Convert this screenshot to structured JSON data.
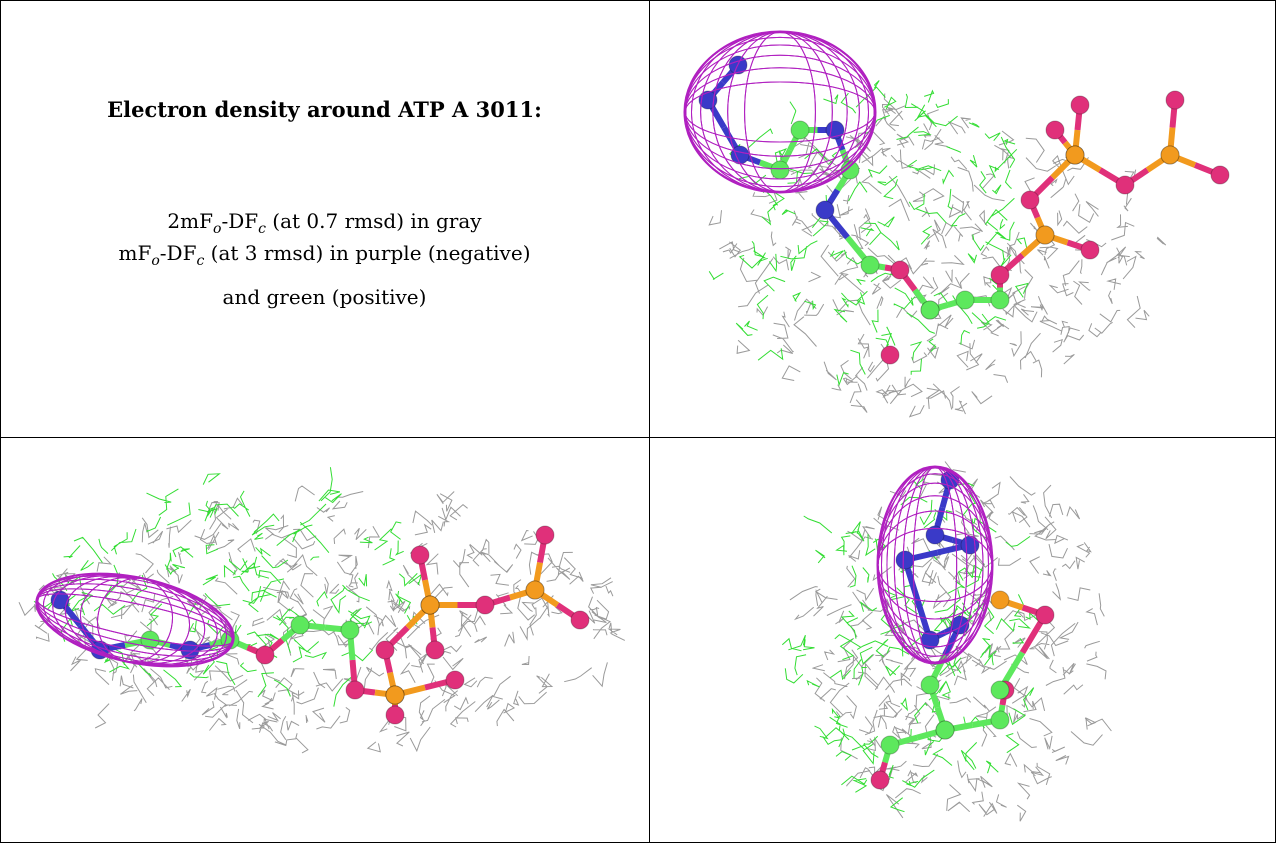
{
  "caption": {
    "title": "Electron density around ATP A 3011:",
    "lines": [
      [
        "2mF",
        "o",
        "-DF",
        "c",
        " (at 0.7 rmsd) in gray"
      ],
      [
        "mF",
        "o",
        "-DF",
        "c",
        " (at 3 rmsd) in purple (negative)"
      ],
      [
        "and green (positive)"
      ]
    ]
  }
}
